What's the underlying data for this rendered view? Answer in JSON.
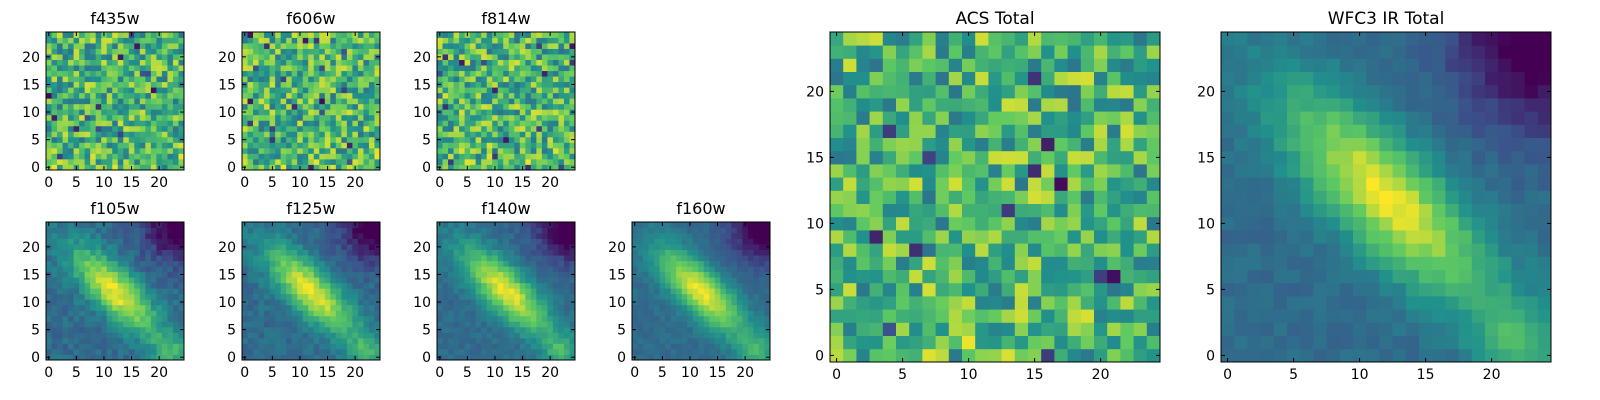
{
  "chart_data": [
    {
      "type": "heatmap",
      "title": "f435w",
      "xticks": [
        "0",
        "5",
        "10",
        "15",
        "20"
      ],
      "yticks": [
        "0",
        "5",
        "10",
        "15",
        "20"
      ],
      "xlim": [
        -0.5,
        24.5
      ],
      "ylim": [
        -0.5,
        24.5
      ],
      "grid": 25,
      "pattern": "noise"
    },
    {
      "type": "heatmap",
      "title": "f606w",
      "xticks": [
        "0",
        "5",
        "10",
        "15",
        "20"
      ],
      "yticks": [
        "0",
        "5",
        "10",
        "15",
        "20"
      ],
      "xlim": [
        -0.5,
        24.5
      ],
      "ylim": [
        -0.5,
        24.5
      ],
      "grid": 25,
      "pattern": "noise"
    },
    {
      "type": "heatmap",
      "title": "f814w",
      "xticks": [
        "0",
        "5",
        "10",
        "15",
        "20"
      ],
      "yticks": [
        "0",
        "5",
        "10",
        "15",
        "20"
      ],
      "xlim": [
        -0.5,
        24.5
      ],
      "ylim": [
        -0.5,
        24.5
      ],
      "grid": 25,
      "pattern": "noise"
    },
    {
      "type": "heatmap",
      "title": "f105w",
      "xticks": [
        "0",
        "5",
        "10",
        "15",
        "20"
      ],
      "yticks": [
        "0",
        "5",
        "10",
        "15",
        "20"
      ],
      "xlim": [
        -0.5,
        24.5
      ],
      "ylim": [
        -0.5,
        24.5
      ],
      "grid": 25,
      "pattern": "galaxy"
    },
    {
      "type": "heatmap",
      "title": "f125w",
      "xticks": [
        "0",
        "5",
        "10",
        "15",
        "20"
      ],
      "yticks": [
        "0",
        "5",
        "10",
        "15",
        "20"
      ],
      "xlim": [
        -0.5,
        24.5
      ],
      "ylim": [
        -0.5,
        24.5
      ],
      "grid": 25,
      "pattern": "galaxy"
    },
    {
      "type": "heatmap",
      "title": "f140w",
      "xticks": [
        "0",
        "5",
        "10",
        "15",
        "20"
      ],
      "yticks": [
        "0",
        "5",
        "10",
        "15",
        "20"
      ],
      "xlim": [
        -0.5,
        24.5
      ],
      "ylim": [
        -0.5,
        24.5
      ],
      "grid": 25,
      "pattern": "galaxy"
    },
    {
      "type": "heatmap",
      "title": "f160w",
      "xticks": [
        "0",
        "5",
        "10",
        "15",
        "20"
      ],
      "yticks": [
        "0",
        "5",
        "10",
        "15",
        "20"
      ],
      "xlim": [
        -0.5,
        24.5
      ],
      "ylim": [
        -0.5,
        24.5
      ],
      "grid": 25,
      "pattern": "galaxy"
    },
    {
      "type": "heatmap",
      "title": "ACS Total",
      "xticks": [
        "0",
        "5",
        "10",
        "15",
        "20"
      ],
      "yticks": [
        "0",
        "5",
        "10",
        "15",
        "20"
      ],
      "xlim": [
        -0.5,
        24.5
      ],
      "ylim": [
        -0.5,
        24.5
      ],
      "grid": 25,
      "pattern": "noise"
    },
    {
      "type": "heatmap",
      "title": "WFC3 IR Total",
      "xticks": [
        "0",
        "5",
        "10",
        "15",
        "20"
      ],
      "yticks": [
        "0",
        "5",
        "10",
        "15",
        "20"
      ],
      "xlim": [
        -0.5,
        24.5
      ],
      "ylim": [
        -0.5,
        24.5
      ],
      "grid": 25,
      "pattern": "galaxy"
    }
  ],
  "colormap": [
    "#440154",
    "#3b528b",
    "#21918c",
    "#5ec962",
    "#fde725"
  ]
}
